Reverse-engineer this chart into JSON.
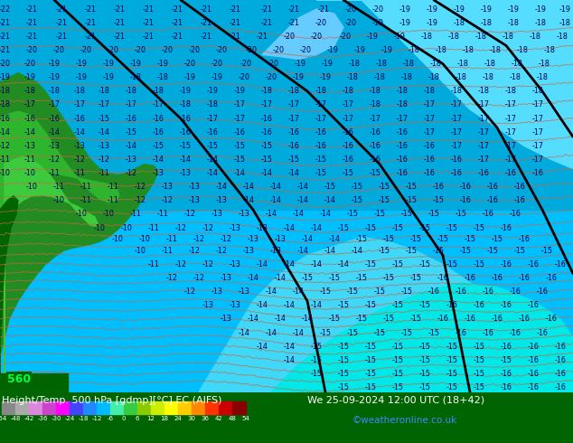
{
  "title_left": "Height/Temp. 500 hPa [gdmp][°C] EC (AIFS)",
  "title_right": "We 25-09-2024 12:00 UTC (18+42)",
  "watermark": "©weatheronline.co.uk",
  "colorbar_values": [
    -54,
    -48,
    -42,
    -36,
    -30,
    -24,
    -18,
    -12,
    -6,
    0,
    6,
    12,
    18,
    24,
    30,
    36,
    42,
    48,
    54
  ],
  "colorbar_colors": [
    "#9b30ff",
    "#7b00d4",
    "#5500aa",
    "#3300bb",
    "#0000ff",
    "#0044ff",
    "#0088ff",
    "#00aaff",
    "#00ccff",
    "#aaffaa",
    "#44dd44",
    "#22aa22",
    "#aadd00",
    "#ffff00",
    "#ffcc00",
    "#ff8800",
    "#ff3300",
    "#aa0000"
  ],
  "ocean_color": "#009fd4",
  "ocean_color2": "#00bfff",
  "lighter_blue": "#40d8f8",
  "cyan_region": "#00e8e8",
  "dark_green": "#006400",
  "mid_green": "#228B22",
  "light_green": "#2db52d",
  "lighter_green": "#3dca3d",
  "contour_color": "#000000",
  "temp_contour_color": "#cc6644",
  "label_color": "#000055",
  "bottom_bg": "#006400",
  "bottom_text": "#ffffff",
  "watermark_color": "#4488ff",
  "fig_width": 6.34,
  "fig_height": 4.9,
  "dpi": 100
}
